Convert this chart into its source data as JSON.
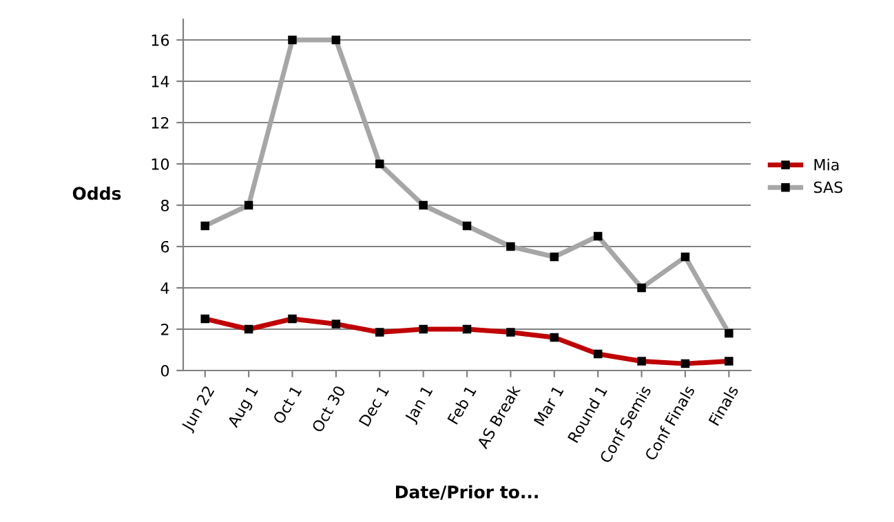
{
  "chart_data": {
    "type": "line",
    "xlabel": "Date/Prior to...",
    "ylabel": "Odds",
    "categories": [
      "Jun 22",
      "Aug 1",
      "Oct 1",
      "Oct 30",
      "Dec 1",
      "Jan 1",
      "Feb 1",
      "AS Break",
      "Mar 1",
      "Round 1",
      "Conf Semis",
      "Conf Finals",
      "Finals"
    ],
    "series": [
      {
        "name": "Mia",
        "color": "#c00000",
        "values": [
          2.5,
          2,
          2.5,
          2.25,
          1.85,
          2,
          2,
          1.85,
          1.6,
          0.8,
          0.45,
          0.33,
          0.45
        ]
      },
      {
        "name": "SAS",
        "color": "#a6a6a6",
        "values": [
          7,
          8,
          16,
          16,
          10,
          8,
          7,
          6,
          5.5,
          6.5,
          4,
          5.5,
          1.8
        ]
      }
    ],
    "ylim": [
      0,
      17
    ],
    "yticks": [
      0,
      2,
      4,
      6,
      8,
      10,
      12,
      14,
      16
    ],
    "grid": "y",
    "legend": "right",
    "marker": "square",
    "line_style": "solid"
  }
}
